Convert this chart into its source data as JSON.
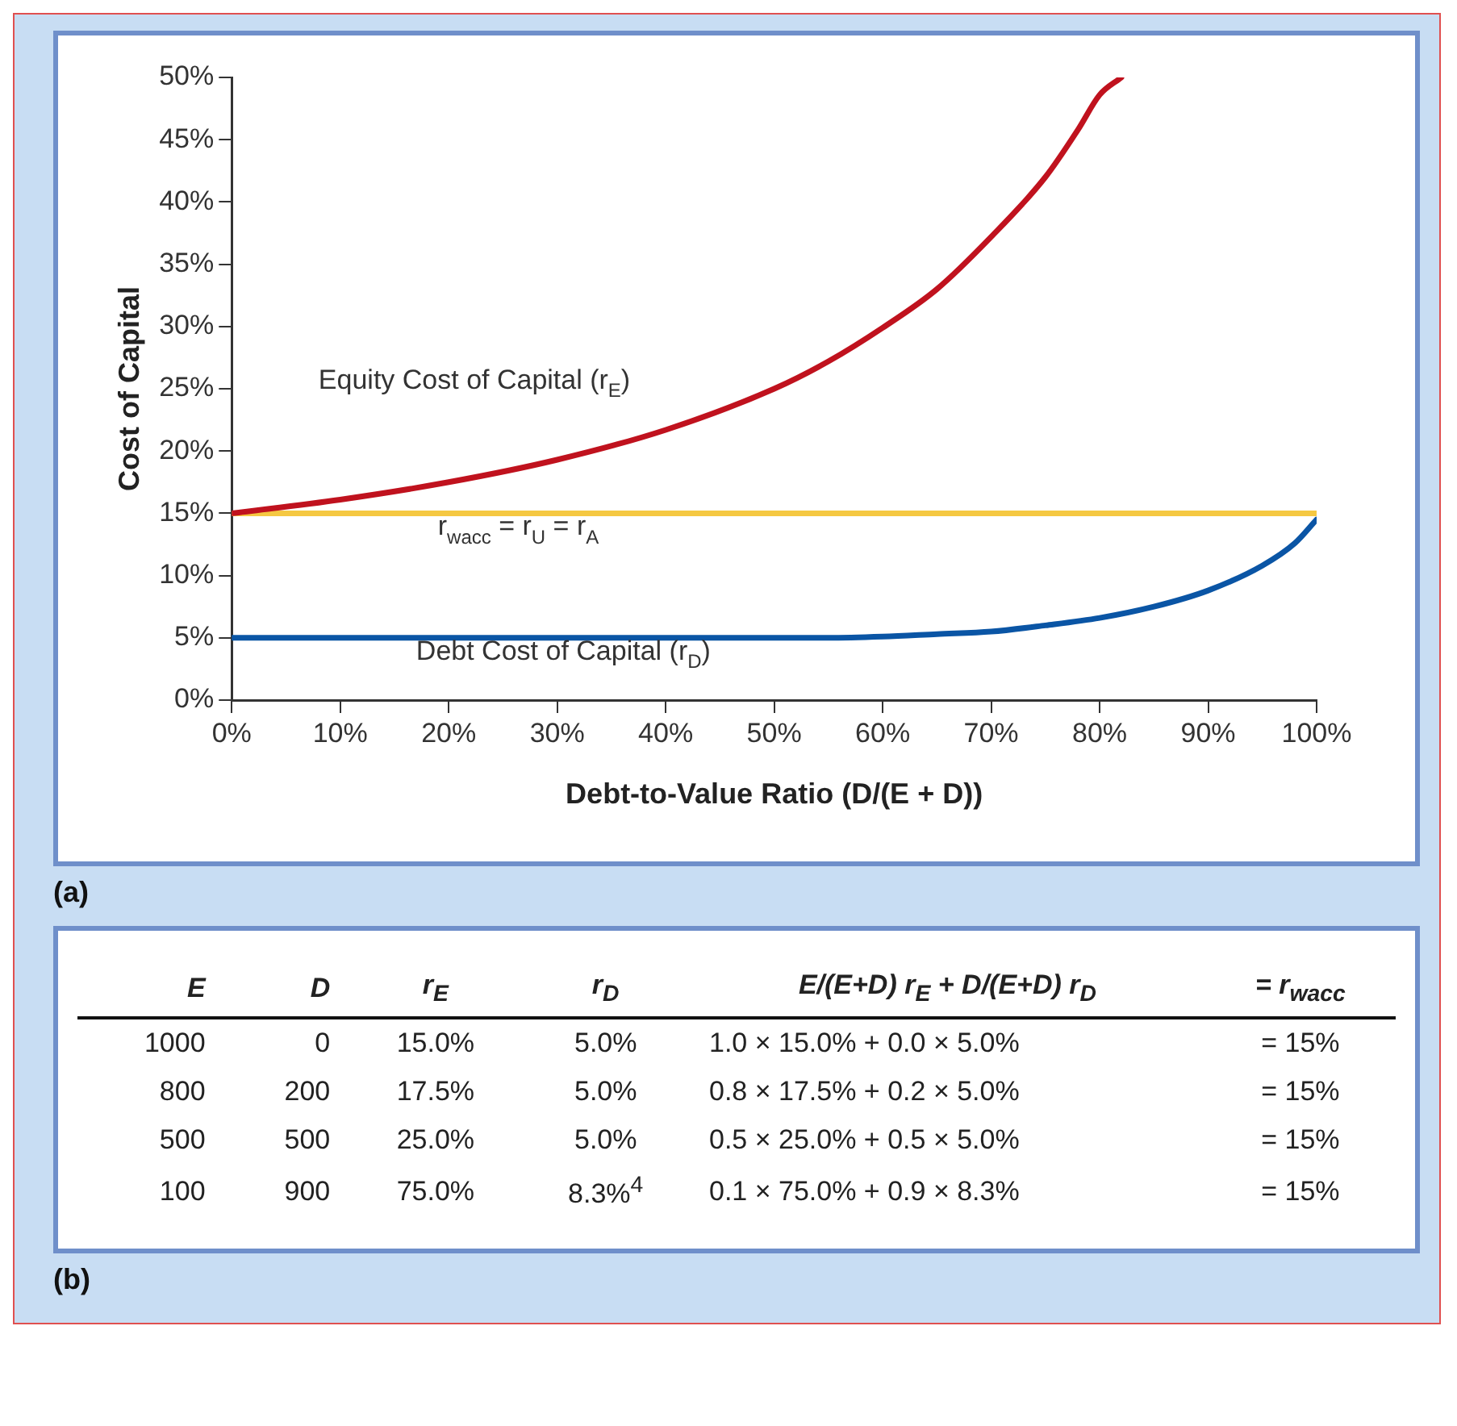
{
  "chart_data": [
    {
      "type": "line",
      "title": "(a)",
      "xlabel": "Debt-to-Value Ratio (D/(E + D))",
      "ylabel": "Cost of Capital",
      "xlim": [
        0,
        100
      ],
      "xticks": [
        {
          "value": 0,
          "label": "0%"
        },
        {
          "value": 10,
          "label": "10%"
        },
        {
          "value": 20,
          "label": "20%"
        },
        {
          "value": 30,
          "label": "30%"
        },
        {
          "value": 40,
          "label": "40%"
        },
        {
          "value": 50,
          "label": "50%"
        },
        {
          "value": 60,
          "label": "60%"
        },
        {
          "value": 70,
          "label": "70%"
        },
        {
          "value": 80,
          "label": "80%"
        },
        {
          "value": 90,
          "label": "90%"
        },
        {
          "value": 100,
          "label": "100%"
        }
      ],
      "ylim": [
        0,
        50
      ],
      "yticks": [
        {
          "value": 0,
          "label": "0%"
        },
        {
          "value": 5,
          "label": "5%"
        },
        {
          "value": 10,
          "label": "10%"
        },
        {
          "value": 15,
          "label": "15%"
        },
        {
          "value": 20,
          "label": "20%"
        },
        {
          "value": 25,
          "label": "25%"
        },
        {
          "value": 30,
          "label": "30%"
        },
        {
          "value": 35,
          "label": "35%"
        },
        {
          "value": 40,
          "label": "40%"
        },
        {
          "value": 45,
          "label": "45%"
        },
        {
          "value": 50,
          "label": "50%"
        }
      ],
      "grid": false,
      "legend": false,
      "marker": "none",
      "line_style": "solid",
      "series": [
        {
          "name": "Equity Cost of Capital (r$_{E}$)",
          "color": "#c0121e",
          "x": [
            0,
            10,
            20,
            30,
            40,
            50,
            55,
            60,
            65,
            70,
            75,
            78,
            80,
            82
          ],
          "values": [
            15,
            16.1,
            17.5,
            19.3,
            21.7,
            25,
            27.2,
            29.9,
            33,
            37.2,
            42,
            45.8,
            48.6,
            50
          ]
        },
        {
          "name": "r$_{wacc}$ = r$_{U}$ = r$_{A}$",
          "color": "#f5c842",
          "x": [
            0,
            100
          ],
          "values": [
            15,
            15
          ]
        },
        {
          "name": "Debt Cost of Capital (r$_{D}$)",
          "color": "#0a55a5",
          "x": [
            0,
            10,
            20,
            30,
            40,
            50,
            55,
            60,
            65,
            70,
            75,
            80,
            85,
            90,
            95,
            98,
            100
          ],
          "values": [
            5,
            5,
            5,
            5,
            5,
            5,
            5,
            5.1,
            5.3,
            5.5,
            6,
            6.6,
            7.5,
            8.8,
            10.8,
            12.6,
            14.5
          ]
        }
      ]
    },
    {
      "type": "other",
      "title": "(b)",
      "annotations": [
        "E",
        "D",
        "r$_{E}$",
        "r$_{D}$",
        "E/(E+D) r$_{E}$ + D/(E+D) r$_{D}$",
        "= r$_{wacc}$",
        "1000",
        "0",
        "15.0%",
        "5.0%",
        "1.0 × 15.0% + 0.0 × 5.0%",
        "= 15%",
        "800",
        "200",
        "17.5%",
        "5.0%",
        "0.8 × 17.5% + 0.2 × 5.0%",
        "= 15%",
        "500",
        "500",
        "25.0%",
        "5.0%",
        "0.5 × 25.0% + 0.5 × 5.0%",
        "= 15%",
        "100",
        "900",
        "75.0%",
        "8.3%$^{4}$",
        "0.1 × 75.0% + 0.9 × 8.3%",
        "= 15%"
      ]
    }
  ]
}
